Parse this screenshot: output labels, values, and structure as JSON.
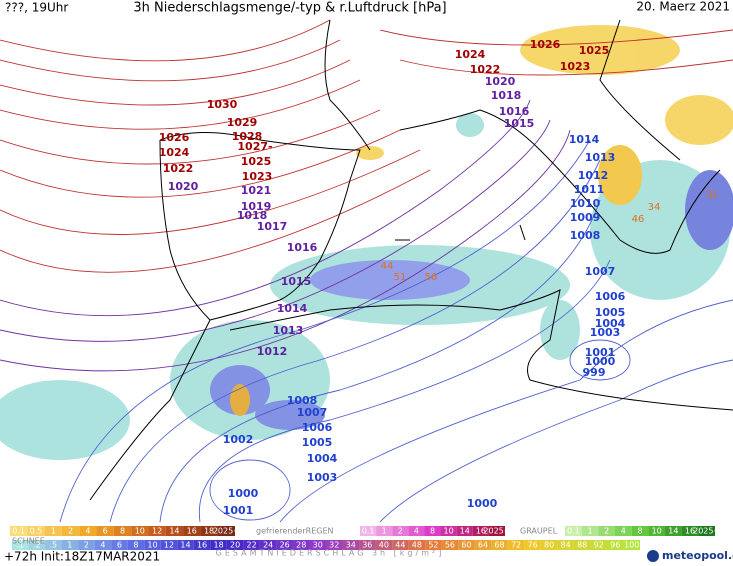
{
  "header": {
    "left": "???, 19Uhr",
    "title": "3h Niederschlagsmenge/-typ & r.Luftdruck [hPa]",
    "date": "20. Maerz 2021"
  },
  "isobar_labels": [
    "1030",
    "1029",
    "1028",
    "1027-",
    "1026",
    "1025",
    "1024",
    "1023",
    "1022",
    "1024",
    "1022",
    "1026",
    "1025",
    "1023",
    "1020",
    "1021",
    "1019",
    "1018",
    "1017",
    "1020",
    "1018",
    "1016",
    "1015",
    "1016",
    "1015",
    "1014",
    "1013",
    "1012",
    "1014",
    "1013",
    "1012",
    "1011",
    "1010",
    "1009",
    "1008",
    "1007",
    "1006",
    "1005",
    "1004",
    "1003",
    "1001",
    "1000",
    "999",
    "1008",
    "1007",
    "1006",
    "1005",
    "1004",
    "1003",
    "1002",
    "1000",
    "1001",
    "1000"
  ],
  "precip_labels": [
    "44",
    "51",
    "56",
    "34",
    "46",
    "31"
  ],
  "legend": {
    "snow": {
      "label": "SCHNEE",
      "steps": [
        "0.1",
        "0.5",
        "1",
        "2",
        "4",
        "6",
        "8",
        "10",
        "12",
        "14",
        "16",
        "18",
        "2025+"
      ]
    },
    "freezing_rain": {
      "label": "gefrierenderREGEN",
      "steps": [
        "0.1",
        "1",
        "2",
        "4",
        "8",
        "10",
        "14",
        "16",
        "2025+"
      ]
    },
    "graupel": {
      "label": "GRAUPEL",
      "steps": [
        "0.1",
        "1",
        "2",
        "4",
        "8",
        "10",
        "14",
        "16",
        "2025+"
      ]
    },
    "total": {
      "label": "GESAMTNIEDERSCHLAG 3h [kg/m²]",
      "steps": [
        ".1",
        ".2",
        ".5",
        "1",
        "2",
        "4",
        "6",
        "8",
        "10",
        "12",
        "14",
        "16",
        "18",
        "20",
        "22",
        "24",
        "26",
        "28",
        "30",
        "32",
        "34",
        "36",
        "40",
        "44",
        "48",
        "52",
        "56",
        "60",
        "64",
        "68",
        "72",
        "76",
        "80",
        "84",
        "88",
        "92",
        "96",
        "100"
      ]
    }
  },
  "footer": {
    "init": "+72h Init:18Z17MAR2021",
    "brand": "meteopool.org"
  }
}
